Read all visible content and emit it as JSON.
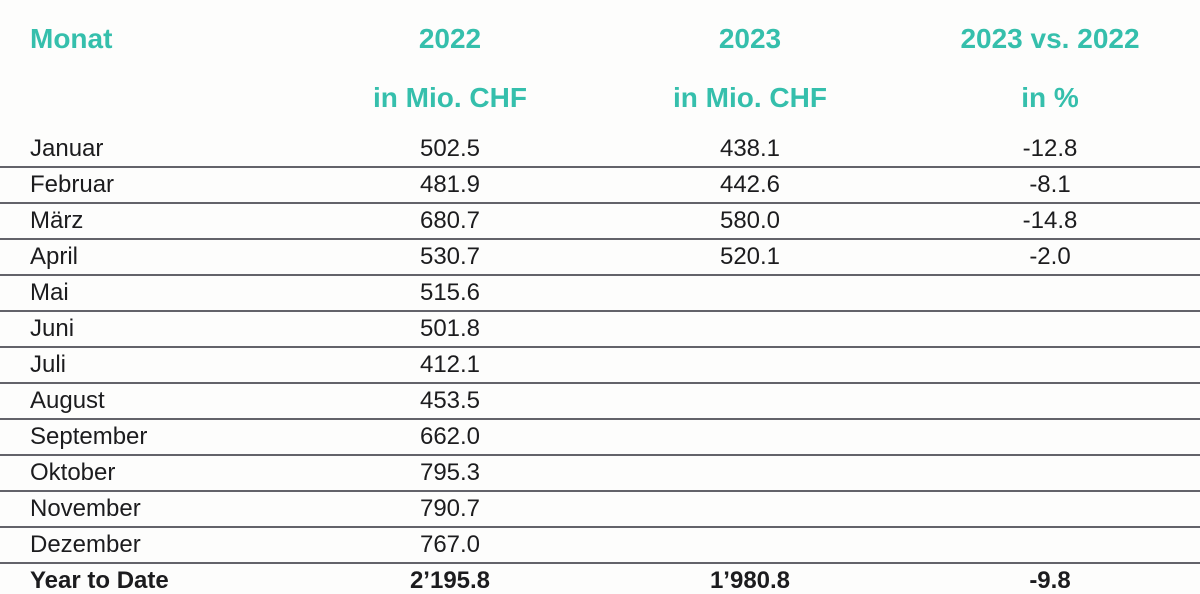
{
  "accent_color": "#35bfac",
  "text_color": "#1c1c1e",
  "separator_color": "#63636a",
  "header": {
    "col1": "Monat",
    "col2": "2022",
    "col2_sub": "in Mio. CHF",
    "col3": "2023",
    "col3_sub": "in Mio. CHF",
    "col4": "2023 vs. 2022",
    "col4_sub": "in %"
  },
  "table": {
    "rows": [
      {
        "month": "Januar",
        "y2022": "502.5",
        "y2023": "438.1",
        "pct": "-12.8"
      },
      {
        "month": "Februar",
        "y2022": "481.9",
        "y2023": "442.6",
        "pct": "-8.1"
      },
      {
        "month": "März",
        "y2022": "680.7",
        "y2023": "580.0",
        "pct": "-14.8"
      },
      {
        "month": "April",
        "y2022": "530.7",
        "y2023": "520.1",
        "pct": "-2.0"
      },
      {
        "month": "Mai",
        "y2022": "515.6",
        "y2023": "",
        "pct": ""
      },
      {
        "month": "Juni",
        "y2022": "501.8",
        "y2023": "",
        "pct": ""
      },
      {
        "month": "Juli",
        "y2022": "412.1",
        "y2023": "",
        "pct": ""
      },
      {
        "month": "August",
        "y2022": "453.5",
        "y2023": "",
        "pct": ""
      },
      {
        "month": "September",
        "y2022": "662.0",
        "y2023": "",
        "pct": ""
      },
      {
        "month": "Oktober",
        "y2022": "795.3",
        "y2023": "",
        "pct": ""
      },
      {
        "month": "November",
        "y2022": "790.7",
        "y2023": "",
        "pct": ""
      },
      {
        "month": "Dezember",
        "y2022": "767.0",
        "y2023": "",
        "pct": ""
      }
    ],
    "total": {
      "label": "Year to Date",
      "y2022": "2’195.8",
      "y2023": "1’980.8",
      "pct": "-9.8"
    }
  },
  "chart_data": {
    "type": "table",
    "title": "Monat / 2022 vs. 2023 in Mio. CHF",
    "columns": [
      "Monat",
      "2022 in Mio. CHF",
      "2023 in Mio. CHF",
      "2023 vs. 2022 in %"
    ],
    "rows": [
      [
        "Januar",
        502.5,
        438.1,
        -12.8
      ],
      [
        "Februar",
        481.9,
        442.6,
        -8.1
      ],
      [
        "März",
        680.7,
        580.0,
        -14.8
      ],
      [
        "April",
        530.7,
        520.1,
        -2.0
      ],
      [
        "Mai",
        515.6,
        null,
        null
      ],
      [
        "Juni",
        501.8,
        null,
        null
      ],
      [
        "Juli",
        412.1,
        null,
        null
      ],
      [
        "August",
        453.5,
        null,
        null
      ],
      [
        "September",
        662.0,
        null,
        null
      ],
      [
        "Oktober",
        795.3,
        null,
        null
      ],
      [
        "November",
        790.7,
        null,
        null
      ],
      [
        "Dezember",
        767.0,
        null,
        null
      ]
    ],
    "total_row": [
      "Year to Date",
      2195.8,
      1980.8,
      -9.8
    ]
  }
}
